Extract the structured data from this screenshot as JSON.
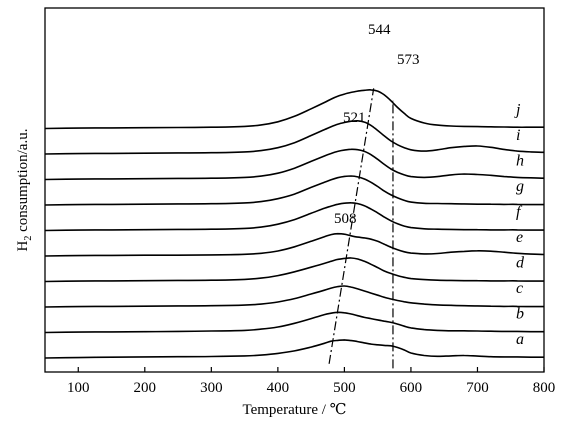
{
  "chart_data": {
    "type": "line",
    "xlabel": "Temperature / ℃",
    "ylabel_main": "H",
    "ylabel_sub": "2",
    "ylabel_rest": " consumption/a.u.",
    "xlim": [
      50,
      800
    ],
    "x_ticks": [
      100,
      200,
      300,
      400,
      500,
      600,
      700,
      800
    ],
    "y_ticks_shown": false,
    "x": [
      50,
      100,
      150,
      200,
      250,
      300,
      350,
      375,
      400,
      425,
      450,
      470,
      480,
      490,
      500,
      510,
      520,
      530,
      540,
      550,
      560,
      570,
      580,
      590,
      600,
      620,
      640,
      660,
      680,
      700,
      720,
      740,
      760,
      780,
      800
    ],
    "series": [
      {
        "name": "a",
        "values": [
          0,
          0.02,
          0.04,
          0.05,
          0.06,
          0.07,
          0.1,
          0.14,
          0.22,
          0.34,
          0.52,
          0.7,
          0.8,
          0.84,
          0.86,
          0.83,
          0.78,
          0.72,
          0.66,
          0.63,
          0.6,
          0.58,
          0.5,
          0.38,
          0.24,
          0.12,
          0.08,
          0.1,
          0.12,
          0.09,
          0.06,
          0.05,
          0.05,
          0.04,
          0.04
        ]
      },
      {
        "name": "b",
        "values": [
          0,
          0.02,
          0.03,
          0.04,
          0.05,
          0.07,
          0.1,
          0.16,
          0.26,
          0.44,
          0.66,
          0.85,
          0.92,
          0.96,
          0.94,
          0.88,
          0.8,
          0.72,
          0.66,
          0.6,
          0.54,
          0.48,
          0.4,
          0.3,
          0.22,
          0.14,
          0.1,
          0.08,
          0.08,
          0.07,
          0.06,
          0.05,
          0.05,
          0.04,
          0.04
        ]
      },
      {
        "name": "c",
        "values": [
          0,
          0.02,
          0.03,
          0.04,
          0.05,
          0.06,
          0.09,
          0.14,
          0.24,
          0.4,
          0.62,
          0.8,
          0.9,
          0.97,
          1.0,
          0.95,
          0.86,
          0.76,
          0.66,
          0.56,
          0.46,
          0.38,
          0.31,
          0.25,
          0.2,
          0.14,
          0.1,
          0.08,
          0.06,
          0.05,
          0.04,
          0.03,
          0.03,
          0.02,
          0.02
        ]
      },
      {
        "name": "d",
        "values": [
          0,
          0.02,
          0.03,
          0.04,
          0.05,
          0.06,
          0.1,
          0.16,
          0.28,
          0.46,
          0.68,
          0.86,
          0.96,
          1.05,
          1.1,
          1.12,
          1.07,
          0.96,
          0.82,
          0.66,
          0.5,
          0.38,
          0.28,
          0.2,
          0.14,
          0.09,
          0.06,
          0.05,
          0.04,
          0.04,
          0.03,
          0.03,
          0.03,
          0.02,
          0.02
        ]
      },
      {
        "name": "e",
        "values": [
          0,
          0.02,
          0.03,
          0.04,
          0.04,
          0.05,
          0.08,
          0.13,
          0.24,
          0.44,
          0.7,
          0.92,
          1.02,
          1.06,
          1.04,
          0.96,
          0.9,
          0.86,
          0.8,
          0.7,
          0.56,
          0.42,
          0.3,
          0.2,
          0.14,
          0.1,
          0.12,
          0.18,
          0.22,
          0.25,
          0.23,
          0.18,
          0.13,
          0.09,
          0.07
        ]
      },
      {
        "name": "f",
        "values": [
          0,
          0.02,
          0.03,
          0.04,
          0.05,
          0.06,
          0.1,
          0.16,
          0.3,
          0.52,
          0.82,
          1.06,
          1.16,
          1.25,
          1.3,
          1.32,
          1.28,
          1.18,
          1.02,
          0.84,
          0.64,
          0.46,
          0.32,
          0.21,
          0.14,
          0.08,
          0.06,
          0.05,
          0.04,
          0.04,
          0.03,
          0.03,
          0.03,
          0.02,
          0.02
        ]
      },
      {
        "name": "g",
        "values": [
          0,
          0.02,
          0.03,
          0.04,
          0.05,
          0.06,
          0.1,
          0.16,
          0.3,
          0.52,
          0.84,
          1.08,
          1.2,
          1.3,
          1.36,
          1.38,
          1.34,
          1.24,
          1.08,
          0.88,
          0.66,
          0.48,
          0.34,
          0.22,
          0.14,
          0.08,
          0.07,
          0.06,
          0.05,
          0.04,
          0.04,
          0.03,
          0.03,
          0.02,
          0.02
        ]
      },
      {
        "name": "h",
        "values": [
          0,
          0.02,
          0.03,
          0.04,
          0.05,
          0.06,
          0.1,
          0.16,
          0.3,
          0.54,
          0.86,
          1.12,
          1.24,
          1.34,
          1.4,
          1.44,
          1.42,
          1.34,
          1.18,
          0.96,
          0.72,
          0.5,
          0.34,
          0.22,
          0.14,
          0.1,
          0.14,
          0.22,
          0.26,
          0.24,
          0.2,
          0.14,
          0.1,
          0.08,
          0.06
        ]
      },
      {
        "name": "i",
        "values": [
          0,
          0.02,
          0.03,
          0.04,
          0.05,
          0.06,
          0.1,
          0.16,
          0.3,
          0.54,
          0.88,
          1.16,
          1.3,
          1.42,
          1.5,
          1.56,
          1.58,
          1.52,
          1.36,
          1.12,
          0.86,
          0.62,
          0.44,
          0.3,
          0.2,
          0.14,
          0.2,
          0.3,
          0.36,
          0.38,
          0.32,
          0.22,
          0.14,
          0.1,
          0.08
        ]
      },
      {
        "name": "j",
        "values": [
          0,
          0.02,
          0.03,
          0.04,
          0.05,
          0.06,
          0.1,
          0.17,
          0.32,
          0.58,
          0.94,
          1.24,
          1.4,
          1.54,
          1.64,
          1.72,
          1.78,
          1.82,
          1.84,
          1.78,
          1.6,
          1.32,
          1.0,
          0.72,
          0.48,
          0.26,
          0.16,
          0.12,
          0.1,
          0.09,
          0.08,
          0.07,
          0.06,
          0.06,
          0.06
        ]
      }
    ],
    "peak_labels": [
      {
        "text": "544",
        "x": 544
      },
      {
        "text": "573",
        "x": 573
      },
      {
        "text": "521",
        "x": 521
      },
      {
        "text": "508",
        "x": 508
      }
    ],
    "dashdot_lines": [
      {
        "from": {
          "x": 477,
          "curve": "a"
        },
        "to": {
          "x": 544,
          "curve": "j"
        }
      },
      {
        "from": {
          "x": 573,
          "curve": "a"
        },
        "to": {
          "x": 573,
          "curve": "j"
        }
      }
    ]
  }
}
